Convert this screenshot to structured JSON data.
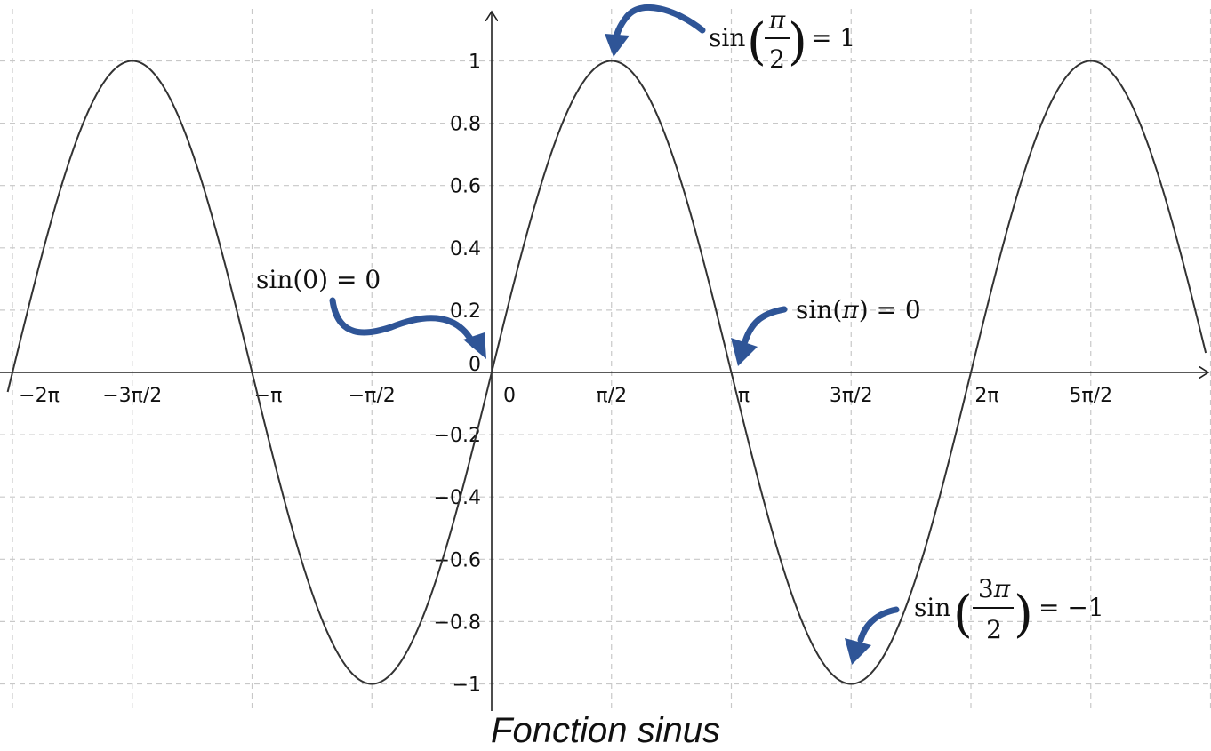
{
  "chart_data": {
    "type": "line",
    "title": "Fonction sinus",
    "function": "sin(x)",
    "xlabel": "",
    "ylabel": "",
    "xlim_in_pi": [
      -2.0,
      2.98
    ],
    "ylim": [
      -1.0,
      1.0
    ],
    "grid": true,
    "grid_style": "dashed",
    "x_ticks": [
      {
        "value_in_pi": -2.0,
        "label": "−2π"
      },
      {
        "value_in_pi": -1.5,
        "label": "−3π/2"
      },
      {
        "value_in_pi": -1.0,
        "label": "−π"
      },
      {
        "value_in_pi": -0.5,
        "label": "−π/2"
      },
      {
        "value_in_pi": 0.0,
        "label": "0"
      },
      {
        "value_in_pi": 0.5,
        "label": "π/2"
      },
      {
        "value_in_pi": 1.0,
        "label": "π"
      },
      {
        "value_in_pi": 1.5,
        "label": "3π/2"
      },
      {
        "value_in_pi": 2.0,
        "label": "2π"
      },
      {
        "value_in_pi": 2.5,
        "label": "5π/2"
      }
    ],
    "y_ticks": [
      {
        "value": 1.0,
        "label": "1"
      },
      {
        "value": 0.8,
        "label": "0.8"
      },
      {
        "value": 0.6,
        "label": "0.6"
      },
      {
        "value": 0.4,
        "label": "0.4"
      },
      {
        "value": 0.2,
        "label": "0.2"
      },
      {
        "value": 0.0,
        "label": "0"
      },
      {
        "value": -0.2,
        "label": "−0.2"
      },
      {
        "value": -0.4,
        "label": "−0.4"
      },
      {
        "value": -0.6,
        "label": "−0.6"
      },
      {
        "value": -0.8,
        "label": "−0.8"
      },
      {
        "value": -1.0,
        "label": "−1"
      }
    ],
    "annotations": [
      {
        "id": "sin-zero",
        "fn": "sin",
        "arg": "0",
        "result": "0",
        "point_x_in_pi": 0.0,
        "point_y": 0
      },
      {
        "id": "sin-pi-half",
        "fn": "sin",
        "numerator": "π",
        "denominator": "2",
        "result": "1",
        "point_x_in_pi": 0.5,
        "point_y": 1
      },
      {
        "id": "sin-pi",
        "fn": "sin",
        "arg": "π",
        "result": "0",
        "point_x_in_pi": 1.0,
        "point_y": 0
      },
      {
        "id": "sin-three-pi-half",
        "fn": "sin",
        "numerator": "3π",
        "denominator": "2",
        "result": "−1",
        "point_x_in_pi": 1.5,
        "point_y": -1
      }
    ],
    "colors": {
      "curve": "#333333",
      "axis": "#222222",
      "grid": "#c8c8c8",
      "arrow": "#2f5597"
    }
  }
}
